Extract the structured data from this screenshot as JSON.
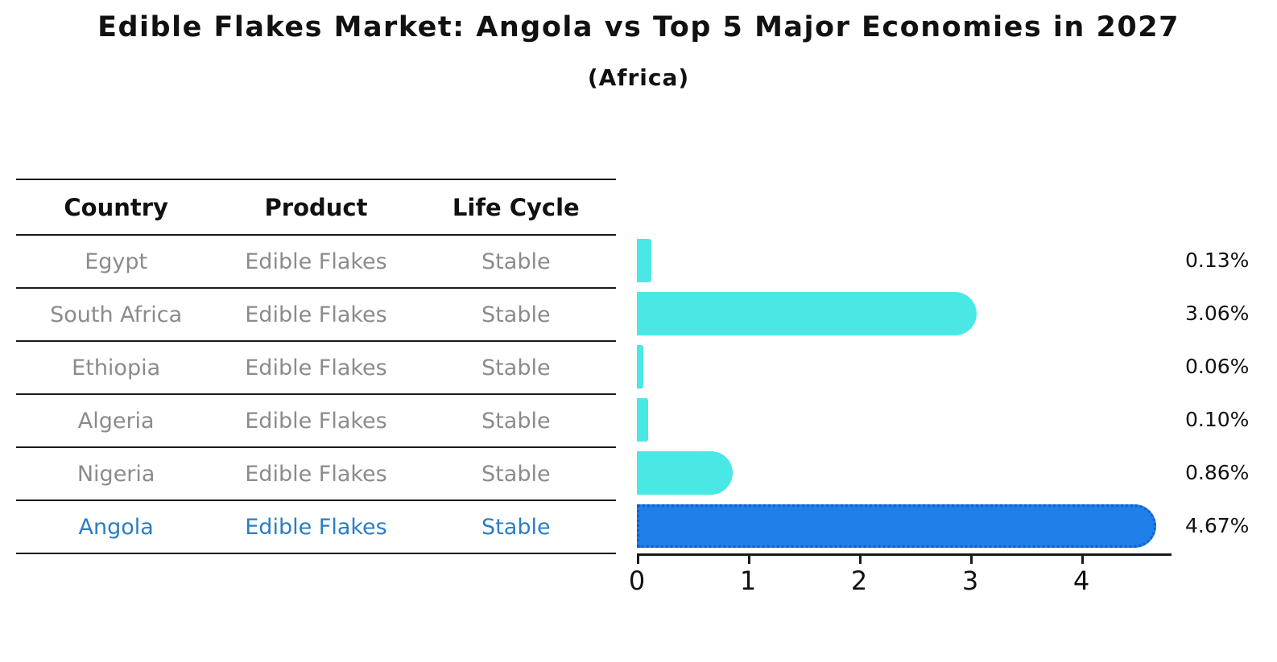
{
  "title": "Edible Flakes Market: Angola vs Top 5 Major Economies in 2027",
  "subtitle": "(Africa)",
  "table": {
    "headers": [
      "Country",
      "Product",
      "Life Cycle"
    ],
    "rows": [
      {
        "country": "Egypt",
        "product": "Edible Flakes",
        "life_cycle": "Stable",
        "highlight": false
      },
      {
        "country": "South Africa",
        "product": "Edible Flakes",
        "life_cycle": "Stable",
        "highlight": false
      },
      {
        "country": "Ethiopia",
        "product": "Edible Flakes",
        "life_cycle": "Stable",
        "highlight": false
      },
      {
        "country": "Algeria",
        "product": "Edible Flakes",
        "life_cycle": "Stable",
        "highlight": false
      },
      {
        "country": "Nigeria",
        "product": "Edible Flakes",
        "life_cycle": "Stable",
        "highlight": false
      },
      {
        "country": "Angola",
        "product": "Edible Flakes",
        "life_cycle": "Stable",
        "highlight": true
      }
    ]
  },
  "chart_data": {
    "type": "bar",
    "orientation": "horizontal",
    "title": "Edible Flakes Market: Angola vs Top 5 Major Economies in 2027",
    "subtitle": "(Africa)",
    "categories": [
      "Egypt",
      "South Africa",
      "Ethiopia",
      "Algeria",
      "Nigeria",
      "Angola"
    ],
    "values": [
      0.13,
      3.06,
      0.06,
      0.1,
      0.86,
      4.67
    ],
    "value_labels": [
      "0.13%",
      "3.06%",
      "0.06%",
      "0.10%",
      "0.86%",
      "4.67%"
    ],
    "x_ticks": [
      "0",
      "1",
      "2",
      "3",
      "4"
    ],
    "xlim": [
      0,
      4.81
    ],
    "grid": false,
    "legend": false,
    "highlight_index": 5,
    "unit": "%"
  },
  "colors": {
    "bar": "#4AE8E4",
    "highlight_bar": "#1E80E8",
    "highlight_edge": "#0f5fd0",
    "highlight_text": "#2b7dc4",
    "text": "#111111",
    "muted_text": "#8b8b8b",
    "line": "#1a1a1a"
  }
}
